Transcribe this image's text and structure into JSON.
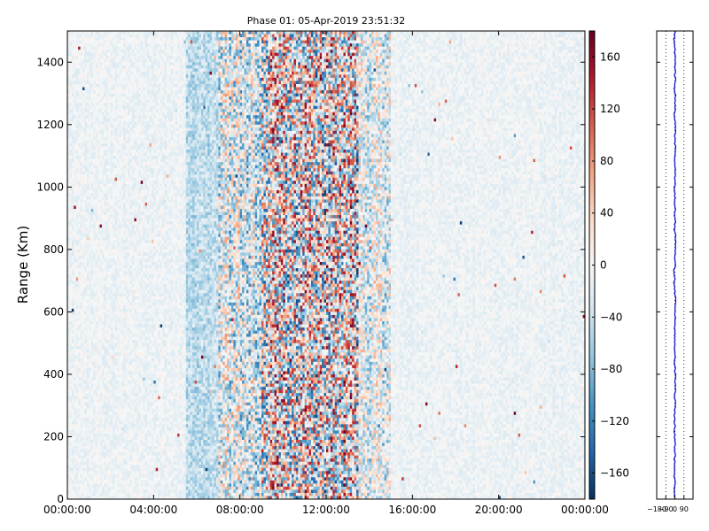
{
  "chart_data": [
    {
      "type": "heatmap",
      "title": "Phase 01: 05-Apr-2019 23:51:32",
      "xlabel": "",
      "ylabel": "Range (Km)",
      "x_ticks": [
        "00:00:00",
        "04:00:00",
        "08:00:00",
        "12:00:00",
        "16:00:00",
        "20:00:00",
        "00:00:00"
      ],
      "x_tick_hours": [
        0,
        4,
        8,
        12,
        16,
        20,
        24
      ],
      "xlim_hours": [
        0,
        24
      ],
      "y_ticks": [
        0,
        200,
        400,
        600,
        800,
        1000,
        1200,
        1400
      ],
      "ylim": [
        0,
        1500
      ],
      "colorbar": {
        "colormap": "RdBu_r",
        "range": [
          -180,
          180
        ],
        "ticks": [
          -160,
          -120,
          -80,
          -40,
          0,
          40,
          80,
          120,
          160
        ],
        "tick_labels": [
          "−160",
          "−120",
          "−80",
          "−40",
          "0",
          "40",
          "80",
          "120",
          "160"
        ]
      },
      "time_profile_hours": [
        {
          "start": 0.0,
          "end": 5.5,
          "mean_phase": -10,
          "spread": 20
        },
        {
          "start": 5.5,
          "end": 7.0,
          "mean_phase": -45,
          "spread": 40
        },
        {
          "start": 7.0,
          "end": 9.0,
          "mean_phase": -20,
          "spread": 110
        },
        {
          "start": 9.0,
          "end": 13.5,
          "mean_phase": 0,
          "spread": 180
        },
        {
          "start": 13.5,
          "end": 15.0,
          "mean_phase": -15,
          "spread": 90
        },
        {
          "start": 15.0,
          "end": 24.0,
          "mean_phase": -10,
          "spread": 20
        }
      ],
      "grid": false
    },
    {
      "type": "line",
      "title": "",
      "xlabel": "",
      "ylabel": "",
      "xlim": [
        -180,
        180
      ],
      "ylim": [
        0,
        1500
      ],
      "x_ticks": [
        -180,
        -90,
        0,
        90
      ],
      "x_tick_labels": [
        "−180",
        "−90",
        "0",
        "90"
      ],
      "y_ticks": [
        0,
        200,
        400,
        600,
        800,
        1000,
        1200,
        1400
      ],
      "series": [
        {
          "color": "#0000cc",
          "y_range": [
            0,
            1500
          ],
          "mean_x": 0,
          "spread_x": 12
        }
      ],
      "vertical_gridlines_x": [
        -90,
        0,
        90
      ],
      "grid": "dotted-vertical"
    }
  ]
}
